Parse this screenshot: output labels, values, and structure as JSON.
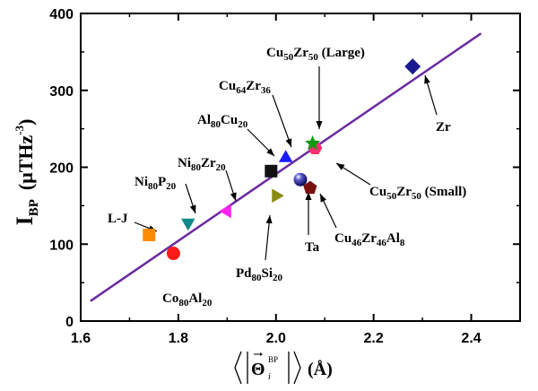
{
  "chart_data": {
    "type": "scatter",
    "xlim": [
      1.6,
      2.5
    ],
    "ylim": [
      0,
      400
    ],
    "x_ticks": [
      {
        "value": 1.6,
        "label": "1.6"
      },
      {
        "value": 1.8,
        "label": "1.8"
      },
      {
        "value": 2.0,
        "label": "2.0"
      },
      {
        "value": 2.2,
        "label": "2.2"
      },
      {
        "value": 2.4,
        "label": "2.4"
      }
    ],
    "y_ticks": [
      {
        "value": 0,
        "label": "0"
      },
      {
        "value": 100,
        "label": "100"
      },
      {
        "value": 200,
        "label": "200"
      },
      {
        "value": 300,
        "label": "300"
      },
      {
        "value": 400,
        "label": "400"
      }
    ],
    "ylabel": {
      "main": "I",
      "sub": "BP",
      "unit_open": "(μTHz",
      "unit_sup": "-3",
      "unit_close": ")"
    },
    "xlabel": {
      "theta": "Θ",
      "sup": "BP",
      "sub": "i",
      "unit": "(Å)"
    },
    "fit_line": {
      "x": [
        1.62,
        2.42
      ],
      "y": [
        26,
        374
      ],
      "color": "#6a2aa0"
    },
    "points": [
      {
        "name": "L-J",
        "x": 1.74,
        "y": 112,
        "shape": "square",
        "color": "#ff8c00"
      },
      {
        "name": "Co80Al20",
        "x": 1.79,
        "y": 88,
        "shape": "circle",
        "color": "#ff1a1a"
      },
      {
        "name": "Ni80P20",
        "x": 1.82,
        "y": 128,
        "shape": "triangle-down",
        "color": "#108a8a"
      },
      {
        "name": "Ni80Zr20",
        "x": 1.9,
        "y": 143,
        "shape": "triangle-left",
        "color": "#ff22ee"
      },
      {
        "name": "Al80Cu20",
        "x": 1.99,
        "y": 195,
        "shape": "square",
        "color": "#111111"
      },
      {
        "name": "Cu64Zr36",
        "x": 2.02,
        "y": 212,
        "shape": "triangle-up",
        "color": "#1a1aff"
      },
      {
        "name": "Pd80Si20",
        "x": 2.0,
        "y": 163,
        "shape": "triangle-right",
        "color": "#8a8a10"
      },
      {
        "name": "Ta",
        "x": 2.05,
        "y": 184,
        "shape": "sphere",
        "color": "#1a1a90"
      },
      {
        "name": "Cu46Zr46Al8",
        "x": 2.07,
        "y": 173,
        "shape": "pentagon",
        "color": "#7a1010"
      },
      {
        "name": "Cu50Zr50 (Small)",
        "x": 2.08,
        "y": 225,
        "shape": "hexagon",
        "color": "#ff3070"
      },
      {
        "name": "Cu50Zr50 (Large)",
        "x": 2.075,
        "y": 231,
        "shape": "star",
        "color": "#109a10"
      },
      {
        "name": "Zr",
        "x": 2.28,
        "y": 331,
        "shape": "diamond",
        "color": "#1a1a90"
      }
    ],
    "labels": [
      {
        "id": "lj",
        "parts": [
          {
            "t": "L-J"
          }
        ]
      },
      {
        "id": "coal",
        "parts": [
          {
            "t": "Co"
          },
          {
            "t": "80",
            "sub": true
          },
          {
            "t": "Al"
          },
          {
            "t": "20",
            "sub": true
          }
        ]
      },
      {
        "id": "nip",
        "parts": [
          {
            "t": "Ni"
          },
          {
            "t": "80",
            "sub": true
          },
          {
            "t": "P"
          },
          {
            "t": "20",
            "sub": true
          }
        ]
      },
      {
        "id": "nizr",
        "parts": [
          {
            "t": "Ni"
          },
          {
            "t": "80",
            "sub": true
          },
          {
            "t": "Zr"
          },
          {
            "t": "20",
            "sub": true
          }
        ]
      },
      {
        "id": "alcu",
        "parts": [
          {
            "t": "Al"
          },
          {
            "t": "80",
            "sub": true
          },
          {
            "t": "Cu"
          },
          {
            "t": "20",
            "sub": true
          }
        ]
      },
      {
        "id": "cuzr64",
        "parts": [
          {
            "t": "Cu"
          },
          {
            "t": "64",
            "sub": true
          },
          {
            "t": "Zr"
          },
          {
            "t": "36",
            "sub": true
          }
        ]
      },
      {
        "id": "pdsi",
        "parts": [
          {
            "t": "Pd"
          },
          {
            "t": "80",
            "sub": true
          },
          {
            "t": "Si"
          },
          {
            "t": "20",
            "sub": true
          }
        ]
      },
      {
        "id": "ta",
        "parts": [
          {
            "t": "Ta"
          }
        ]
      },
      {
        "id": "cuzral",
        "parts": [
          {
            "t": "Cu"
          },
          {
            "t": "46",
            "sub": true
          },
          {
            "t": "Zr"
          },
          {
            "t": "46",
            "sub": true
          },
          {
            "t": "Al"
          },
          {
            "t": "8",
            "sub": true
          }
        ]
      },
      {
        "id": "cuzrsmall",
        "parts": [
          {
            "t": "Cu"
          },
          {
            "t": "50",
            "sub": true
          },
          {
            "t": "Zr"
          },
          {
            "t": "50",
            "sub": true
          },
          {
            "t": " (Small)"
          }
        ]
      },
      {
        "id": "cuzrlarge",
        "parts": [
          {
            "t": "Cu"
          },
          {
            "t": "50",
            "sub": true
          },
          {
            "t": "Zr"
          },
          {
            "t": "50",
            "sub": true
          },
          {
            "t": " (Large)"
          }
        ]
      },
      {
        "id": "zr",
        "parts": [
          {
            "t": "Zr"
          }
        ]
      }
    ]
  }
}
